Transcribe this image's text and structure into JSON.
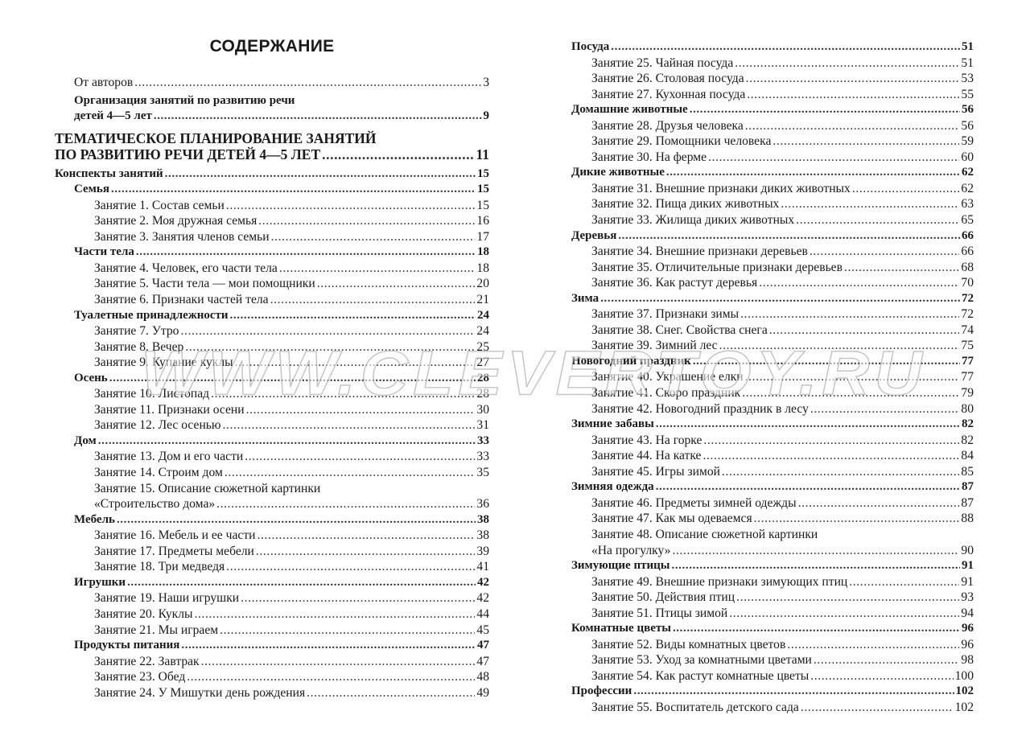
{
  "title": "СОДЕРЖАНИЕ",
  "watermark": "WWW.CLEVERTOY.RU",
  "left_page": [
    {
      "t": "От авторов",
      "p": "3",
      "lvl": 1
    },
    {
      "t": "Организация занятий по развитию речи",
      "p": "",
      "lvl": 1,
      "b": true
    },
    {
      "t": "детей 4—5 лет",
      "p": "9",
      "lvl": 1,
      "b": true
    },
    {
      "t": "ТЕМАТИЧЕСКОЕ ПЛАНИРОВАНИЕ ЗАНЯТИЙ",
      "p": "",
      "lvl": 0,
      "part": true
    },
    {
      "t": "ПО РАЗВИТИЮ РЕЧИ ДЕТЕЙ 4—5 ЛЕТ",
      "p": "11",
      "lvl": 0,
      "part": true
    },
    {
      "t": "Конспекты занятий",
      "p": "15",
      "lvl": 0,
      "b": true
    },
    {
      "t": "Семья",
      "p": "15",
      "lvl": 1,
      "b": true
    },
    {
      "t": "Занятие 1. Состав семьи",
      "p": "15",
      "lvl": 2
    },
    {
      "t": "Занятие 2. Моя дружная семья",
      "p": "16",
      "lvl": 2
    },
    {
      "t": "Занятие 3. Занятия членов семьи",
      "p": "17",
      "lvl": 2
    },
    {
      "t": "Части тела",
      "p": "18",
      "lvl": 1,
      "b": true
    },
    {
      "t": "Занятие 4. Человек, его части тела",
      "p": "18",
      "lvl": 2
    },
    {
      "t": "Занятие 5. Части тела — мои помощники",
      "p": "20",
      "lvl": 2
    },
    {
      "t": "Занятие 6. Признаки частей тела",
      "p": "21",
      "lvl": 2
    },
    {
      "t": "Туалетные принадлежности",
      "p": "24",
      "lvl": 1,
      "b": true
    },
    {
      "t": "Занятие 7. Утро",
      "p": "24",
      "lvl": 2
    },
    {
      "t": "Занятие 8. Вечер",
      "p": "25",
      "lvl": 2
    },
    {
      "t": "Занятие 9. Купание куклы",
      "p": "27",
      "lvl": 2
    },
    {
      "t": "Осень",
      "p": "28",
      "lvl": 1,
      "b": true
    },
    {
      "t": "Занятие 10. Листопад",
      "p": "28",
      "lvl": 2
    },
    {
      "t": "Занятие 11. Признаки осени",
      "p": "30",
      "lvl": 2
    },
    {
      "t": "Занятие 12. Лес осенью",
      "p": "31",
      "lvl": 2
    },
    {
      "t": "Дом",
      "p": "33",
      "lvl": 1,
      "b": true
    },
    {
      "t": "Занятие 13. Дом и его части",
      "p": "33",
      "lvl": 2
    },
    {
      "t": "Занятие 14. Строим дом",
      "p": "35",
      "lvl": 2
    },
    {
      "t": "Занятие 15. Описание сюжетной картинки",
      "p": "",
      "lvl": 2
    },
    {
      "t": "«Строительство дома»",
      "p": "36",
      "lvl": 2
    },
    {
      "t": "Мебель",
      "p": "38",
      "lvl": 1,
      "b": true
    },
    {
      "t": "Занятие 16. Мебель и ее части",
      "p": "38",
      "lvl": 2
    },
    {
      "t": "Занятие 17. Предметы мебели",
      "p": "39",
      "lvl": 2
    },
    {
      "t": "Занятие 18. Три медведя",
      "p": "41",
      "lvl": 2
    },
    {
      "t": "Игрушки",
      "p": "42",
      "lvl": 1,
      "b": true
    },
    {
      "t": "Занятие 19. Наши игрушки",
      "p": "42",
      "lvl": 2
    },
    {
      "t": "Занятие 20. Куклы",
      "p": "44",
      "lvl": 2
    },
    {
      "t": "Занятие 21. Мы играем",
      "p": "45",
      "lvl": 2
    },
    {
      "t": "Продукты питания",
      "p": "47",
      "lvl": 1,
      "b": true
    },
    {
      "t": "Занятие 22. Завтрак",
      "p": "47",
      "lvl": 2
    },
    {
      "t": "Занятие 23. Обед",
      "p": "48",
      "lvl": 2
    },
    {
      "t": "Занятие 24. У Мишутки день рождения",
      "p": "49",
      "lvl": 2
    }
  ],
  "right_page": [
    {
      "t": "Посуда",
      "p": "51",
      "lvl": 1,
      "b": true
    },
    {
      "t": "Занятие 25. Чайная посуда",
      "p": "51",
      "lvl": 2
    },
    {
      "t": "Занятие 26. Столовая посуда",
      "p": "53",
      "lvl": 2
    },
    {
      "t": "Занятие 27. Кухонная посуда",
      "p": "55",
      "lvl": 2
    },
    {
      "t": "Домашние животные",
      "p": "56",
      "lvl": 1,
      "b": true
    },
    {
      "t": "Занятие 28. Друзья человека",
      "p": "56",
      "lvl": 2
    },
    {
      "t": "Занятие 29. Помощники человека",
      "p": "59",
      "lvl": 2
    },
    {
      "t": "Занятие 30. На ферме",
      "p": "60",
      "lvl": 2
    },
    {
      "t": "Дикие животные",
      "p": "62",
      "lvl": 1,
      "b": true
    },
    {
      "t": "Занятие 31. Внешние признаки диких животных",
      "p": "62",
      "lvl": 2
    },
    {
      "t": "Занятие 32. Пища диких животных",
      "p": "63",
      "lvl": 2
    },
    {
      "t": "Занятие 33. Жилища диких животных",
      "p": "65",
      "lvl": 2
    },
    {
      "t": "Деревья",
      "p": "66",
      "lvl": 1,
      "b": true
    },
    {
      "t": "Занятие 34. Внешние признаки деревьев",
      "p": "66",
      "lvl": 2
    },
    {
      "t": "Занятие 35. Отличительные признаки деревьев",
      "p": "68",
      "lvl": 2
    },
    {
      "t": "Занятие 36. Как растут деревья",
      "p": "70",
      "lvl": 2
    },
    {
      "t": "Зима",
      "p": "72",
      "lvl": 1,
      "b": true
    },
    {
      "t": "Занятие 37. Признаки зимы",
      "p": "72",
      "lvl": 2
    },
    {
      "t": "Занятие 38. Снег. Свойства снега",
      "p": "74",
      "lvl": 2
    },
    {
      "t": "Занятие 39. Зимний лес",
      "p": "75",
      "lvl": 2
    },
    {
      "t": "Новогодний праздник",
      "p": "77",
      "lvl": 1,
      "b": true
    },
    {
      "t": "Занятие 40. Украшение елки",
      "p": "77",
      "lvl": 2
    },
    {
      "t": "Занятие 41. Скоро праздник",
      "p": "79",
      "lvl": 2
    },
    {
      "t": "Занятие 42. Новогодний праздник в лесу",
      "p": "80",
      "lvl": 2
    },
    {
      "t": "Зимние забавы",
      "p": "82",
      "lvl": 1,
      "b": true
    },
    {
      "t": "Занятие 43. На горке",
      "p": "82",
      "lvl": 2
    },
    {
      "t": "Занятие 44. На катке",
      "p": "84",
      "lvl": 2
    },
    {
      "t": "Занятие 45. Игры зимой",
      "p": "85",
      "lvl": 2
    },
    {
      "t": "Зимняя одежда",
      "p": "87",
      "lvl": 1,
      "b": true
    },
    {
      "t": "Занятие 46. Предметы зимней одежды",
      "p": "87",
      "lvl": 2
    },
    {
      "t": "Занятие 47. Как мы одеваемся",
      "p": "88",
      "lvl": 2
    },
    {
      "t": "Занятие 48. Описание сюжетной картинки",
      "p": "",
      "lvl": 2
    },
    {
      "t": "«На прогулку»",
      "p": "90",
      "lvl": 2
    },
    {
      "t": "Зимующие птицы",
      "p": "91",
      "lvl": 1,
      "b": true
    },
    {
      "t": "Занятие 49. Внешние признаки зимующих птиц",
      "p": "91",
      "lvl": 2
    },
    {
      "t": "Занятие 50. Действия птиц",
      "p": "93",
      "lvl": 2
    },
    {
      "t": "Занятие 51. Птицы зимой",
      "p": "94",
      "lvl": 2
    },
    {
      "t": "Комнатные цветы",
      "p": "96",
      "lvl": 1,
      "b": true
    },
    {
      "t": "Занятие 52. Виды комнатных цветов",
      "p": "96",
      "lvl": 2
    },
    {
      "t": "Занятие 53. Уход за комнатными цветами",
      "p": "98",
      "lvl": 2
    },
    {
      "t": "Занятие 54. Как растут комнатные цветы",
      "p": "100",
      "lvl": 2
    },
    {
      "t": "Профессии",
      "p": "102",
      "lvl": 1,
      "b": true
    },
    {
      "t": "Занятие 55. Воспитатель детского сада",
      "p": "102",
      "lvl": 2
    }
  ]
}
